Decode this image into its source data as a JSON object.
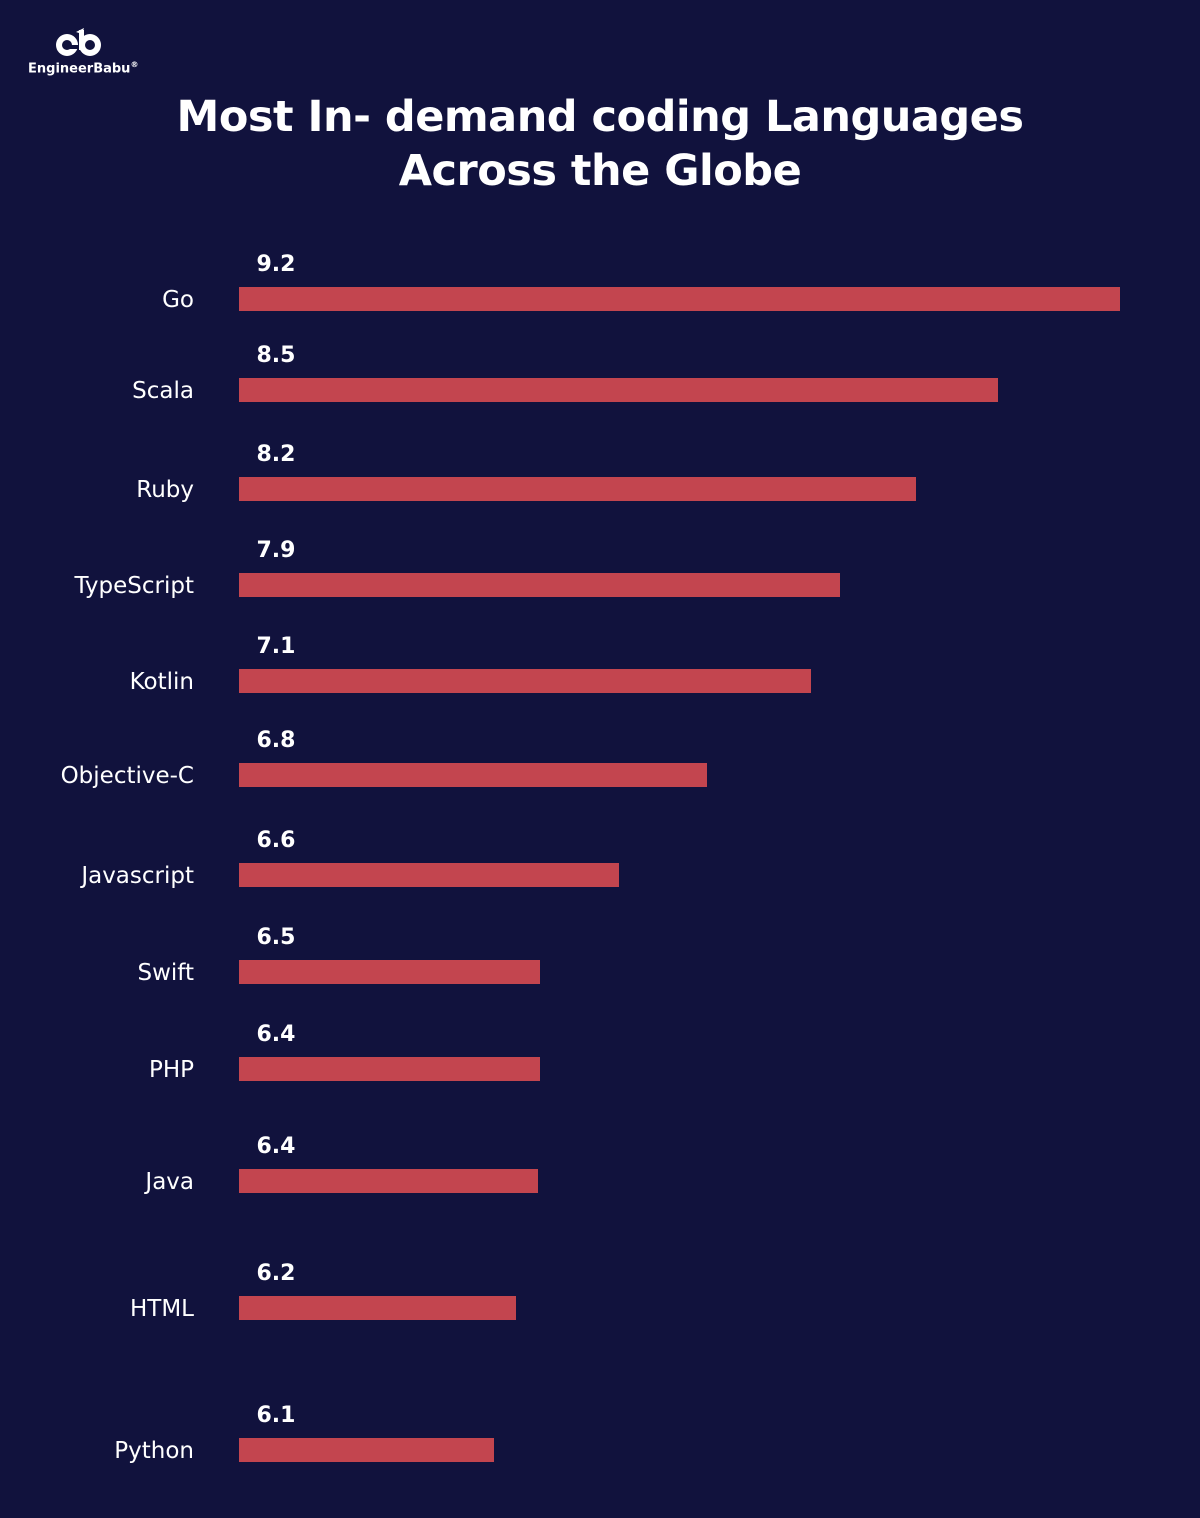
{
  "brand": {
    "name": "EngineerBabu",
    "registered_mark": "®"
  },
  "title_lines": [
    "Most In- demand coding Languages",
    "Across the Globe"
  ],
  "colors": {
    "background": "#11123d",
    "bar": "#c3454f",
    "text": "#ffffff"
  },
  "chart_data": {
    "type": "bar",
    "orientation": "horizontal",
    "title": "Most In- demand coding Languages Across the Globe",
    "categories": [
      "Go",
      "Scala",
      "Ruby",
      "TypeScript",
      "Kotlin",
      "Objective-C",
      "Javascript",
      "Swift",
      "PHP",
      "Java",
      "HTML",
      "Python"
    ],
    "values": [
      9.2,
      8.5,
      8.2,
      7.9,
      7.1,
      6.8,
      6.6,
      6.5,
      6.4,
      6.4,
      6.2,
      6.1
    ],
    "value_labels": [
      "9.2",
      "8.5",
      "8.2",
      "7.9",
      "7.1",
      "6.8",
      "6.6",
      "6.5",
      "6.4",
      "6.4",
      "6.2",
      "6.1"
    ],
    "xlabel": "",
    "ylabel": "",
    "grid": false,
    "legend": "none"
  }
}
